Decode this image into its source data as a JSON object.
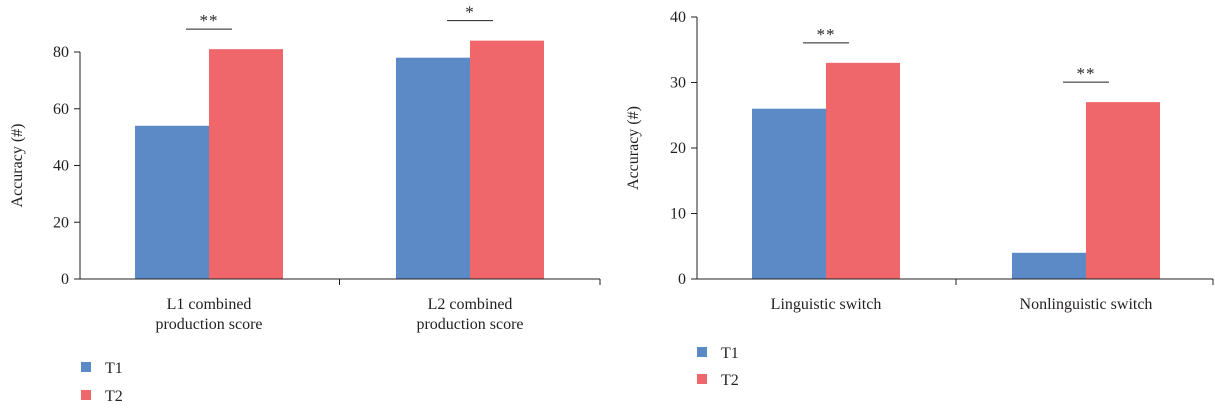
{
  "colors": {
    "T1": "#5b8ac7",
    "T2": "#ef676a",
    "axis": "#231f20",
    "text": "#231f20"
  },
  "chart_data": [
    {
      "type": "bar",
      "categories": [
        [
          "L1 combined",
          "production score"
        ],
        [
          "L2 combined",
          "production score"
        ]
      ],
      "series": [
        {
          "name": "T1",
          "values": [
            54,
            78
          ]
        },
        {
          "name": "T2",
          "values": [
            81,
            84
          ]
        }
      ],
      "title": "",
      "xlabel": "",
      "ylabel": "Accuracy (#)",
      "ylim": [
        0,
        90
      ],
      "yticks": [
        0,
        20,
        40,
        60,
        80
      ],
      "grid": false,
      "legend": {
        "placement": "bottom-left",
        "entries": [
          "T1",
          "T2"
        ]
      },
      "annotations": [
        {
          "category": 0,
          "text": "**"
        },
        {
          "category": 1,
          "text": "*"
        }
      ]
    },
    {
      "type": "bar",
      "categories": [
        [
          "Linguistic switch"
        ],
        [
          "Nonlinguistic switch"
        ]
      ],
      "series": [
        {
          "name": "T1",
          "values": [
            26,
            4
          ]
        },
        {
          "name": "T2",
          "values": [
            33,
            27
          ]
        }
      ],
      "title": "",
      "xlabel": "",
      "ylabel": "Accuracy (#)",
      "ylim": [
        0,
        40
      ],
      "yticks": [
        0,
        10,
        20,
        30,
        40
      ],
      "grid": false,
      "legend": {
        "placement": "bottom-left",
        "entries": [
          "T1",
          "T2"
        ]
      },
      "annotations": [
        {
          "category": 0,
          "text": "**"
        },
        {
          "category": 1,
          "text": "**"
        }
      ]
    }
  ]
}
